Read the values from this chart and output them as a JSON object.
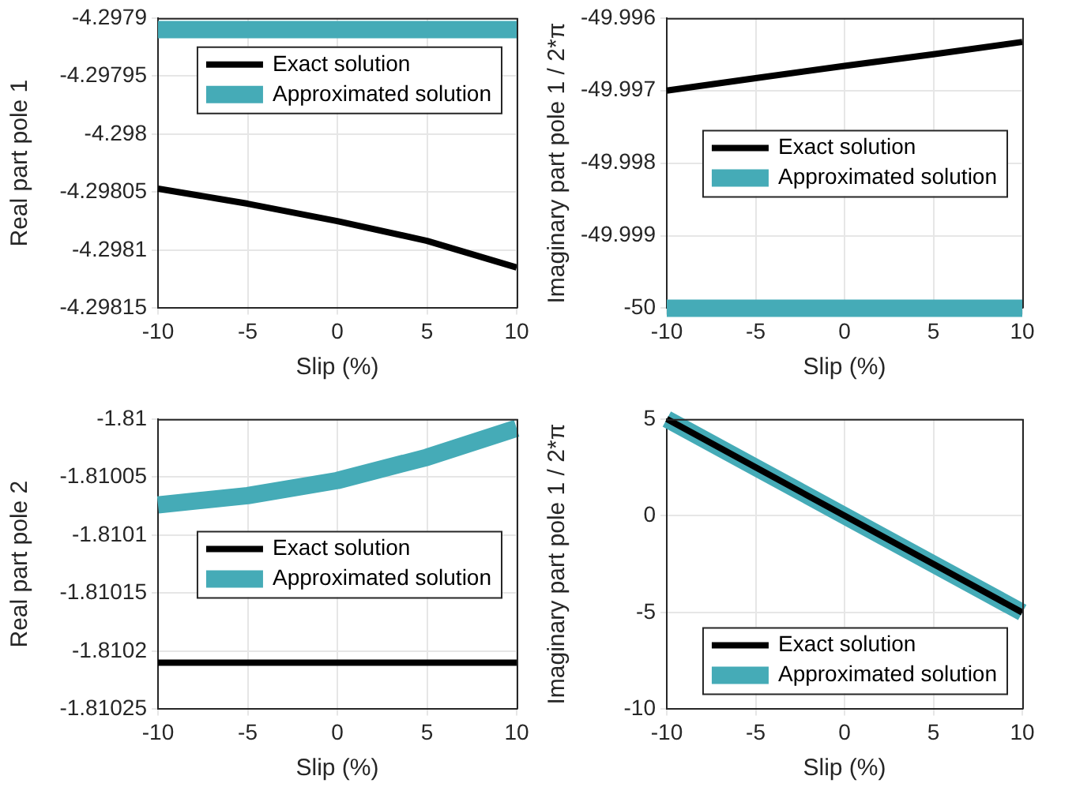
{
  "chart_data": [
    {
      "type": "line",
      "xlabel": "Slip (%)",
      "ylabel": "Real part pole 1",
      "x": [
        -10,
        -5,
        0,
        5,
        10
      ],
      "xlim": [
        -10,
        10
      ],
      "xticks": [
        -10,
        -5,
        0,
        5,
        10
      ],
      "ylim": [
        -4.29815,
        -4.2979
      ],
      "yticks": [
        -4.29815,
        -4.2981,
        -4.29805,
        -4.298,
        -4.29795,
        -4.2979
      ],
      "grid": true,
      "legend": "top right",
      "marker": "none",
      "series": [
        {
          "name": "Exact solution",
          "color": "#000000",
          "values": [
            -4.298047,
            -4.29806,
            -4.298075,
            -4.298092,
            -4.298115
          ]
        },
        {
          "name": "Approximated solution",
          "color": "#45abb7",
          "values": [
            -4.29791,
            -4.29791,
            -4.29791,
            -4.29791,
            -4.29791
          ]
        }
      ]
    },
    {
      "type": "line",
      "xlabel": "Slip (%)",
      "ylabel": "Imaginary part pole 1 / 2*π",
      "x": [
        -10,
        -5,
        0,
        5,
        10
      ],
      "xlim": [
        -10,
        10
      ],
      "xticks": [
        -10,
        -5,
        0,
        5,
        10
      ],
      "ylim": [
        -50,
        -49.996
      ],
      "yticks": [
        -50,
        -49.999,
        -49.998,
        -49.997,
        -49.996
      ],
      "grid": true,
      "legend": "right",
      "marker": "none",
      "series": [
        {
          "name": "Exact solution",
          "color": "#000000",
          "values": [
            -49.997,
            -49.99683,
            -49.99666,
            -49.9965,
            -49.99633
          ]
        },
        {
          "name": "Approximated solution",
          "color": "#45abb7",
          "values": [
            -50,
            -50,
            -50,
            -50,
            -50
          ]
        }
      ]
    },
    {
      "type": "line",
      "xlabel": "Slip (%)",
      "ylabel": "Real part pole 2",
      "x": [
        -10,
        -5,
        0,
        5,
        10
      ],
      "xlim": [
        -10,
        10
      ],
      "xticks": [
        -10,
        -5,
        0,
        5,
        10
      ],
      "ylim": [
        -1.81025,
        -1.81
      ],
      "yticks": [
        -1.81025,
        -1.8102,
        -1.81015,
        -1.8101,
        -1.81005,
        -1.81
      ],
      "grid": true,
      "legend": "right",
      "marker": "none",
      "series": [
        {
          "name": "Exact solution",
          "color": "#000000",
          "values": [
            -1.81021,
            -1.81021,
            -1.81021,
            -1.81021,
            -1.81021
          ]
        },
        {
          "name": "Approximated solution",
          "color": "#45abb7",
          "values": [
            -1.810074,
            -1.810066,
            -1.810053,
            -1.810033,
            -1.810008
          ]
        }
      ]
    },
    {
      "type": "line",
      "xlabel": "Slip (%)",
      "ylabel": "Imaginary part pole 1 / 2*π",
      "x": [
        -10,
        -5,
        0,
        5,
        10
      ],
      "xlim": [
        -10,
        10
      ],
      "xticks": [
        -10,
        -5,
        0,
        5,
        10
      ],
      "ylim": [
        -10,
        5
      ],
      "yticks": [
        -10,
        -5,
        0,
        5
      ],
      "grid": true,
      "legend": "bottom right",
      "marker": "none",
      "series": [
        {
          "name": "Exact solution",
          "color": "#000000",
          "values": [
            5,
            2.5,
            0,
            -2.5,
            -5
          ]
        },
        {
          "name": "Approximated solution",
          "color": "#45abb7",
          "values": [
            5,
            2.5,
            0,
            -2.5,
            -5
          ]
        }
      ]
    }
  ]
}
